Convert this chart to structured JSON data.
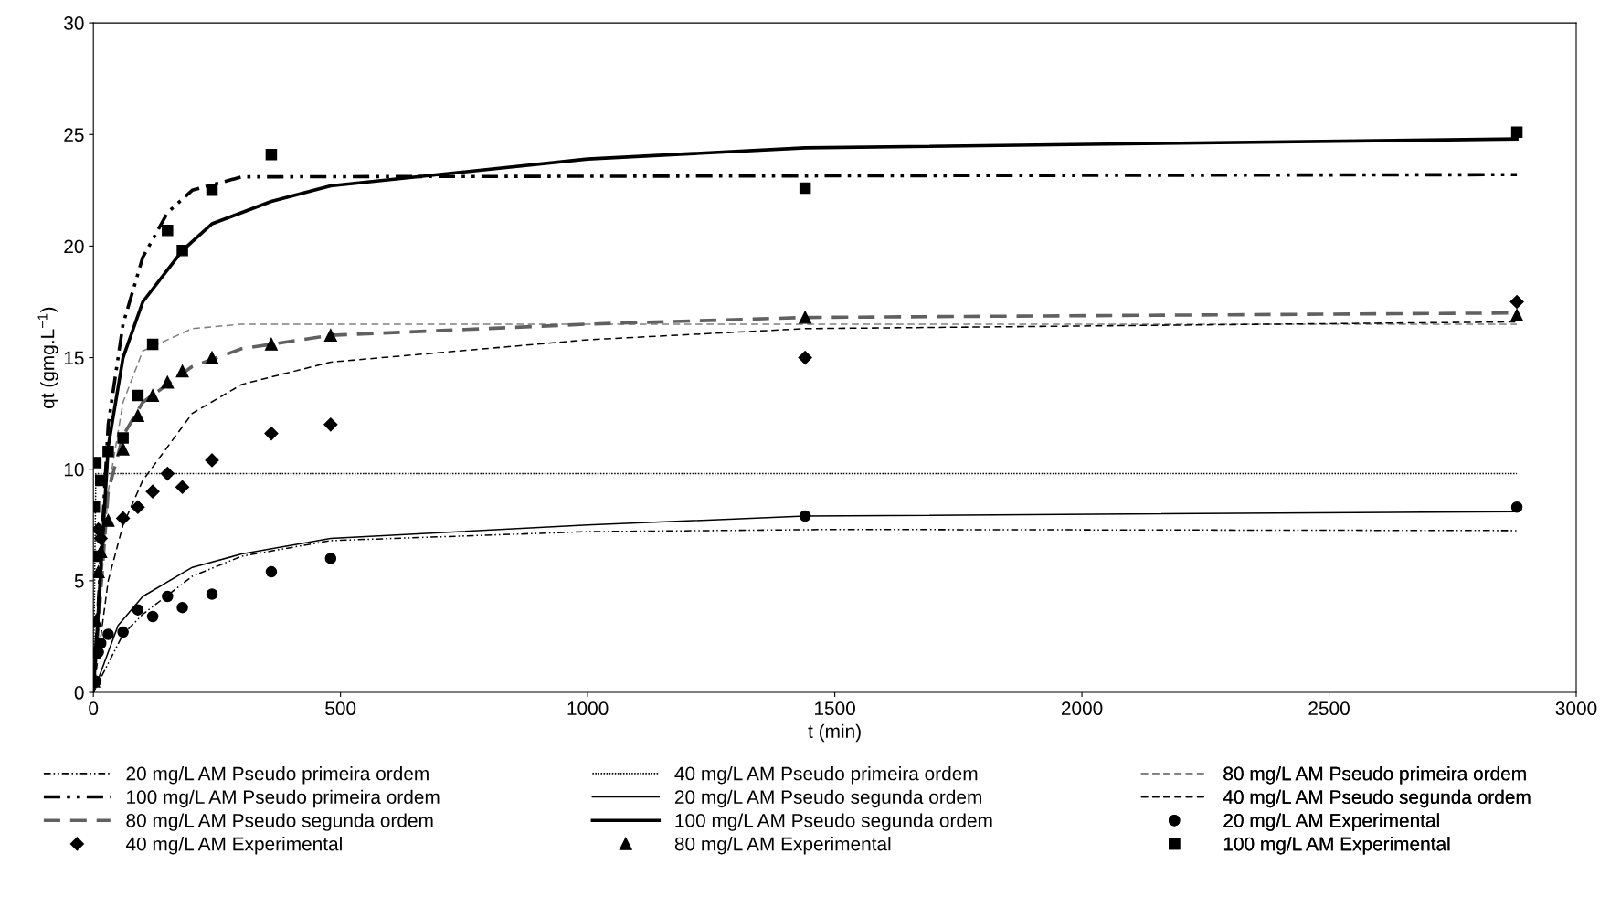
{
  "chart_data": {
    "type": "line",
    "xlabel": "t (min)",
    "ylabel": "qt (gmg.L$^{−1}$)",
    "xlim": [
      0,
      3000
    ],
    "xticks": [
      0,
      500,
      1000,
      1500,
      2000,
      2500,
      3000
    ],
    "ylim": [
      0,
      30
    ],
    "yticks": [
      0,
      5,
      10,
      15,
      20,
      25,
      30
    ],
    "grid": false,
    "legend": "bottom",
    "series": [
      {
        "name": "20 mg/L AM Pseudo primeira ordem",
        "line_style": "dashdot",
        "color": "#000000",
        "marker": "none",
        "x": [
          0,
          60,
          100,
          200,
          300,
          480,
          1000,
          1500,
          2880
        ],
        "values": [
          0,
          2.6,
          3.5,
          5.2,
          6.1,
          6.8,
          7.2,
          7.3,
          7.25
        ]
      },
      {
        "name": "40 mg/L AM Pseudo primeira ordem",
        "line_style": "dotted",
        "color": "#000000",
        "marker": "none",
        "x": [
          0,
          5,
          2880
        ],
        "values": [
          0,
          9.8,
          9.8
        ]
      },
      {
        "name": "80 mg/L AM Pseudo primeira ordem",
        "line_style": "dashed",
        "color": "#808080",
        "marker": "none",
        "x": [
          0,
          30,
          60,
          100,
          200,
          300,
          2880
        ],
        "values": [
          0,
          9,
          13,
          15.3,
          16.3,
          16.5,
          16.5
        ]
      },
      {
        "name": "100 mg/L AM Pseudo primeira ordem",
        "line_style": "dashdot",
        "color": "#000000",
        "marker": "none",
        "x": [
          0,
          30,
          60,
          100,
          150,
          200,
          300,
          2880
        ],
        "values": [
          0,
          12,
          16.5,
          19.5,
          21.5,
          22.5,
          23.1,
          23.2
        ]
      },
      {
        "name": "20 mg/L AM Pseudo segunda ordem",
        "line_style": "solid",
        "color": "#000000",
        "marker": "none",
        "x": [
          0,
          50,
          100,
          200,
          300,
          480,
          1000,
          1440,
          2880
        ],
        "values": [
          0,
          3,
          4.3,
          5.6,
          6.2,
          6.9,
          7.5,
          7.9,
          8.1
        ]
      },
      {
        "name": "40 mg/L AM Pseudo segunda ordem",
        "line_style": "dashed",
        "color": "#000000",
        "marker": "none",
        "x": [
          0,
          30,
          60,
          100,
          200,
          300,
          480,
          1000,
          1440,
          2880
        ],
        "values": [
          0,
          5,
          7.5,
          9.5,
          12.5,
          13.8,
          14.8,
          15.8,
          16.3,
          16.6
        ]
      },
      {
        "name": "80 mg/L AM Pseudo segunda ordem",
        "line_style": "dashed",
        "color": "#606060",
        "marker": "none",
        "x": [
          0,
          30,
          60,
          100,
          200,
          300,
          480,
          1000,
          1440,
          2880
        ],
        "values": [
          0,
          9,
          11.5,
          13,
          14.6,
          15.4,
          16.0,
          16.5,
          16.8,
          17.0
        ]
      },
      {
        "name": "100 mg/L AM Pseudo segunda ordem",
        "line_style": "solid",
        "color": "#000000",
        "marker": "none",
        "x": [
          0,
          30,
          60,
          100,
          180,
          240,
          360,
          480,
          1000,
          1440,
          2880
        ],
        "values": [
          0,
          11,
          15,
          17.5,
          19.8,
          21,
          22,
          22.7,
          23.9,
          24.4,
          24.8
        ]
      },
      {
        "name": "20 mg/L AM Experimental",
        "type": "scatter",
        "marker": "circle",
        "color": "#000000",
        "x": [
          5,
          10,
          15,
          30,
          60,
          90,
          120,
          150,
          180,
          240,
          360,
          480,
          1440,
          2880
        ],
        "values": [
          0.5,
          1.8,
          2.2,
          2.6,
          2.7,
          3.7,
          3.4,
          4.3,
          3.8,
          4.4,
          5.4,
          6.0,
          7.9,
          8.3
        ]
      },
      {
        "name": "40 mg/L AM Experimental",
        "type": "scatter",
        "marker": "diamond",
        "color": "#000000",
        "x": [
          10,
          15,
          60,
          90,
          120,
          150,
          180,
          240,
          360,
          480,
          1440,
          2880
        ],
        "values": [
          7.3,
          6.9,
          7.8,
          8.3,
          9.0,
          9.8,
          9.2,
          10.4,
          11.6,
          12.0,
          15.0,
          17.5
        ]
      },
      {
        "name": "80 mg/L AM Experimental",
        "type": "scatter",
        "marker": "triangle",
        "color": "#000000",
        "x": [
          1,
          2,
          5,
          10,
          15,
          30,
          60,
          90,
          120,
          150,
          180,
          240,
          360,
          480,
          1440,
          2880
        ],
        "values": [
          0.5,
          1.8,
          3.2,
          5.4,
          6.3,
          7.7,
          10.9,
          12.4,
          13.3,
          13.9,
          14.4,
          15.0,
          15.6,
          16.0,
          16.8,
          16.9
        ]
      },
      {
        "name": "100 mg/L AM Experimental",
        "type": "scatter",
        "marker": "square",
        "color": "#000000",
        "x": [
          1,
          2,
          5,
          15,
          30,
          60,
          90,
          120,
          150,
          180,
          240,
          360,
          1440,
          2880
        ],
        "values": [
          6.1,
          8.3,
          10.3,
          9.5,
          10.8,
          11.4,
          13.3,
          15.6,
          20.7,
          19.8,
          22.5,
          24.1,
          22.6,
          25.1
        ]
      }
    ]
  }
}
